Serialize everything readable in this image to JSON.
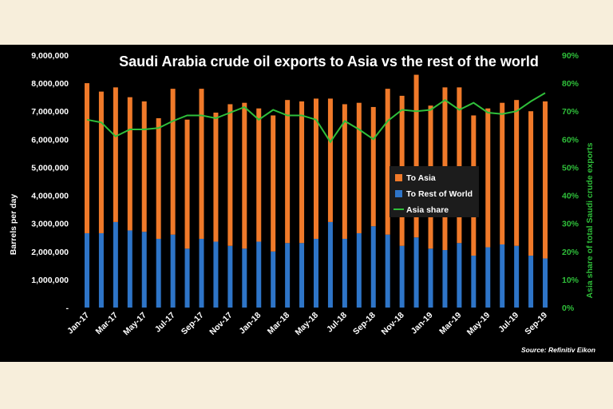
{
  "chart_data": {
    "type": "bar",
    "stacked": true,
    "title": "Saudi Arabia crude oil exports to Asia vs the rest of the world",
    "ylabel": "Barrels per day",
    "y2label": "Asia share of total Saudi crude exports",
    "ylim": [
      0,
      9000000
    ],
    "y2lim": [
      0,
      0.9
    ],
    "y_ticks": [
      "-",
      "1,000,000",
      "2,000,000",
      "3,000,000",
      "4,000,000",
      "5,000,000",
      "6,000,000",
      "7,000,000",
      "8,000,000",
      "9,000,000"
    ],
    "y2_ticks": [
      "0%",
      "10%",
      "20%",
      "30%",
      "40%",
      "50%",
      "60%",
      "70%",
      "80%",
      "90%"
    ],
    "categories": [
      "Jan-17",
      "Feb-17",
      "Mar-17",
      "Apr-17",
      "May-17",
      "Jun-17",
      "Jul-17",
      "Aug-17",
      "Sep-17",
      "Oct-17",
      "Nov-17",
      "Dec-17",
      "Jan-18",
      "Feb-18",
      "Mar-18",
      "Apr-18",
      "May-18",
      "Jun-18",
      "Jul-18",
      "Aug-18",
      "Sep-18",
      "Oct-18",
      "Nov-18",
      "Dec-18",
      "Jan-19",
      "Feb-19",
      "Mar-19",
      "Apr-19",
      "May-19",
      "Jun-19",
      "Jul-19",
      "Aug-19",
      "Sep-19"
    ],
    "x_tick_labels": [
      "Jan-17",
      "Mar-17",
      "May-17",
      "Jul-17",
      "Sep-17",
      "Nov-17",
      "Jan-18",
      "Mar-18",
      "May-18",
      "Jul-18",
      "Sep-18",
      "Nov-18",
      "Jan-19",
      "Mar-19",
      "May-19",
      "Jul-19",
      "Sep-19"
    ],
    "series": [
      {
        "name": "To Rest of World",
        "color": "#2e75c8",
        "axis": "left",
        "values": [
          2650000,
          2650000,
          3050000,
          2750000,
          2700000,
          2450000,
          2600000,
          2100000,
          2450000,
          2350000,
          2200000,
          2100000,
          2350000,
          2000000,
          2300000,
          2300000,
          2450000,
          3050000,
          2450000,
          2650000,
          2900000,
          2600000,
          2200000,
          2500000,
          2100000,
          2050000,
          2300000,
          1850000,
          2150000,
          2250000,
          2200000,
          1850000,
          1750000
        ]
      },
      {
        "name": "To Asia",
        "color": "#f07a2a",
        "axis": "left",
        "values": [
          5350000,
          5050000,
          4800000,
          4750000,
          4650000,
          4300000,
          5200000,
          4600000,
          5350000,
          4600000,
          5050000,
          5200000,
          4750000,
          4850000,
          5100000,
          5050000,
          5000000,
          4400000,
          4800000,
          4650000,
          4250000,
          5200000,
          5350000,
          5800000,
          5100000,
          5800000,
          5550000,
          5000000,
          4950000,
          5050000,
          5200000,
          5150000,
          5600000
        ]
      },
      {
        "name": "Asia share",
        "type": "line",
        "color": "#2fbf3a",
        "axis": "right",
        "values": [
          0.67,
          0.66,
          0.61,
          0.635,
          0.635,
          0.64,
          0.665,
          0.685,
          0.685,
          0.675,
          0.695,
          0.715,
          0.67,
          0.705,
          0.685,
          0.685,
          0.67,
          0.59,
          0.665,
          0.635,
          0.6,
          0.665,
          0.705,
          0.7,
          0.705,
          0.74,
          0.705,
          0.73,
          0.695,
          0.69,
          0.7,
          0.735,
          0.765
        ]
      }
    ],
    "legend": {
      "position": "center-right"
    },
    "grid": false,
    "source": "Source: Refinitiv Eikon"
  }
}
